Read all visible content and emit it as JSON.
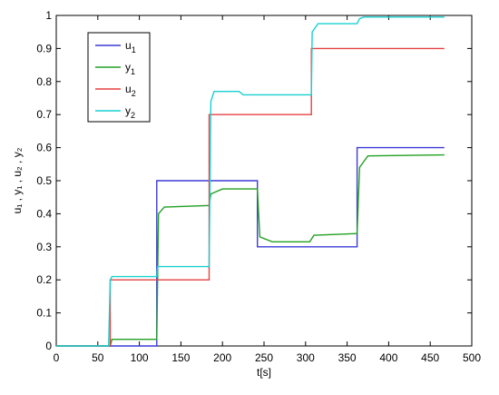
{
  "chart_data": {
    "type": "line",
    "xlabel": "t[s]",
    "ylabel": "u₁ , y₁ , u₂ , y₂",
    "xlim": [
      0,
      500
    ],
    "ylim": [
      0,
      1
    ],
    "xticks": [
      0,
      50,
      100,
      150,
      200,
      250,
      300,
      350,
      400,
      450,
      500
    ],
    "yticks": [
      0,
      0.1,
      0.2,
      0.3,
      0.4,
      0.5,
      0.6,
      0.7,
      0.8,
      0.9,
      1
    ],
    "grid": false,
    "legend_position": "top-left",
    "series": [
      {
        "name": "u1",
        "label_main": "u",
        "label_sub": "1",
        "color": "#3b3bd6",
        "x": [
          0,
          65,
          65,
          121,
          121,
          242,
          242,
          362,
          362,
          467
        ],
        "y": [
          0,
          0,
          0,
          0,
          0.5,
          0.5,
          0.3,
          0.3,
          0.6,
          0.6
        ]
      },
      {
        "name": "y1",
        "label_main": "y",
        "label_sub": "1",
        "color": "#22a022",
        "x": [
          0,
          65,
          67,
          121,
          123,
          130,
          184,
          186,
          200,
          242,
          245,
          260,
          305,
          310,
          362,
          365,
          375,
          467
        ],
        "y": [
          0,
          0,
          0.02,
          0.02,
          0.4,
          0.42,
          0.425,
          0.46,
          0.475,
          0.475,
          0.33,
          0.315,
          0.315,
          0.335,
          0.34,
          0.54,
          0.575,
          0.578
        ]
      },
      {
        "name": "u2",
        "label_main": "u",
        "label_sub": "2",
        "color": "#e64040",
        "x": [
          0,
          65,
          65,
          184,
          184,
          307,
          307,
          467
        ],
        "y": [
          0,
          0,
          0.2,
          0.2,
          0.7,
          0.7,
          0.9,
          0.9
        ]
      },
      {
        "name": "y2",
        "label_main": "y",
        "label_sub": "2",
        "color": "#18d0d0",
        "x": [
          0,
          63,
          65,
          67,
          121,
          122,
          184,
          186,
          190,
          220,
          225,
          307,
          308,
          315,
          362,
          365,
          370,
          467
        ],
        "y": [
          0,
          0,
          0.2,
          0.21,
          0.21,
          0.24,
          0.24,
          0.74,
          0.77,
          0.77,
          0.76,
          0.76,
          0.95,
          0.975,
          0.975,
          0.99,
          0.995,
          0.995
        ]
      }
    ]
  }
}
